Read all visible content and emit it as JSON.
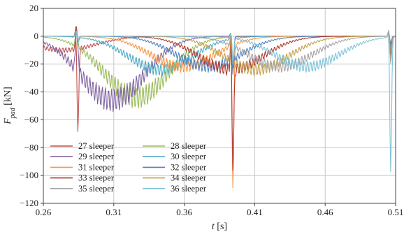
{
  "chart_data": {
    "type": "line",
    "xlabel": {
      "var": "t",
      "unit": " [s]"
    },
    "ylabel": {
      "var": "F",
      "sub": "pad",
      "unit": " [kN]"
    },
    "xlim": [
      0.26,
      0.51
    ],
    "ylim": [
      -120,
      20
    ],
    "x_ticks": [
      0.26,
      0.31,
      0.36,
      0.41,
      0.46,
      0.51
    ],
    "x_tick_labels": [
      "0.26",
      "0.31",
      "0.36",
      "0.41",
      "0.46",
      "0.51"
    ],
    "y_ticks": [
      20,
      0,
      -20,
      -40,
      -60,
      -80,
      -100,
      -120
    ],
    "y_tick_labels": [
      "20",
      "0",
      "−20",
      "−40",
      "−60",
      "−80",
      "−100",
      "−120"
    ],
    "grid": true,
    "legend_position": "bottom-left",
    "legend_columns": 2,
    "wheel_impacts_s": [
      0.2845,
      0.3945,
      0.5065
    ],
    "series": [
      {
        "name": "27 sleeper",
        "color": "#c0504d",
        "trough_t": 0.274,
        "trough_value": -10,
        "impact_min": [
          -70,
          -27,
          -5
        ],
        "impact_max": [
          8,
          3,
          2
        ]
      },
      {
        "name": "28 sleeper",
        "color": "#9bbb59",
        "trough_t": 0.326,
        "trough_value": -44,
        "impact_min": [
          -5,
          -26,
          -8
        ],
        "impact_max": [
          6,
          4,
          3
        ]
      },
      {
        "name": "29 sleeper",
        "color": "#8064a2",
        "trough_t": 0.309,
        "trough_value": -46,
        "impact_min": [
          -10,
          -28,
          -6
        ],
        "impact_max": [
          5,
          5,
          3
        ]
      },
      {
        "name": "30 sleeper",
        "color": "#4bacc6",
        "trough_t": 0.343,
        "trough_value": -24,
        "impact_min": [
          -5,
          -25,
          -10
        ],
        "impact_max": [
          7,
          4,
          5
        ]
      },
      {
        "name": "31 sleeper",
        "color": "#f79646",
        "trough_t": 0.359,
        "trough_value": -22,
        "impact_min": [
          -3,
          -110,
          -12
        ],
        "impact_max": [
          5,
          6,
          5
        ]
      },
      {
        "name": "32 sleeper",
        "color": "#4f81bd",
        "trough_t": 0.377,
        "trough_value": -22,
        "impact_min": [
          -3,
          -25,
          -14
        ],
        "impact_max": [
          5,
          4,
          5
        ]
      },
      {
        "name": "33 sleeper",
        "color": "#b03a2e",
        "trough_t": 0.393,
        "trough_value": -24,
        "impact_min": [
          -3,
          -100,
          -15
        ],
        "impact_max": [
          9,
          11,
          5
        ]
      },
      {
        "name": "34 sleeper",
        "color": "#c5a14a",
        "trough_t": 0.411,
        "trough_value": -24,
        "impact_min": [
          -3,
          -22,
          -18
        ],
        "impact_max": [
          5,
          5,
          6
        ]
      },
      {
        "name": "35 sleeper",
        "color": "#a5a5a5",
        "trough_t": 0.428,
        "trough_value": -22,
        "impact_min": [
          -3,
          -20,
          -20
        ],
        "impact_max": [
          5,
          5,
          7
        ]
      },
      {
        "name": "36 sleeper",
        "color": "#7fc4d9",
        "trough_t": 0.447,
        "trough_value": -22,
        "impact_min": [
          -3,
          -18,
          -98
        ],
        "impact_max": [
          5,
          4,
          8
        ]
      }
    ]
  }
}
